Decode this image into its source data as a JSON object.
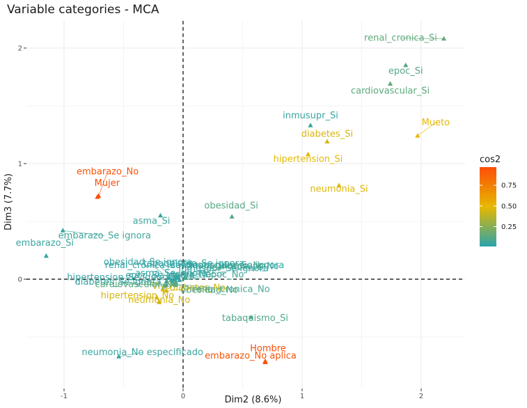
{
  "chart_data": {
    "type": "scatter",
    "title": "Variable categories - MCA",
    "xlabel": "Dim2 (8.6%)",
    "ylabel": "Dim3 (7.7%)",
    "xlim": [
      -1.0,
      2.0
    ],
    "ylim": [
      -0.8,
      2.2
    ],
    "x_ticks": [
      -1,
      0,
      1,
      2
    ],
    "y_ticks": [
      0,
      1,
      2
    ],
    "reference_lines": {
      "x": 0,
      "y": 0,
      "style": "dashed"
    },
    "grid": true,
    "marker": "triangle",
    "legend": {
      "title": "cos2",
      "position": "right",
      "ticks": [
        0.25,
        0.5,
        0.75
      ],
      "colors": [
        "#2AA4AC",
        "#E7B800",
        "#FC4E07"
      ],
      "range": [
        0.01,
        0.97
      ]
    },
    "points": [
      {
        "label": "renal_cronica_Si",
        "x": 2.19,
        "y": 2.08,
        "cos2": 0.15
      },
      {
        "label": "epoc_Si",
        "x": 1.87,
        "y": 1.85,
        "cos2": 0.12
      },
      {
        "label": "cardiovascular_Si",
        "x": 1.74,
        "y": 1.69,
        "cos2": 0.14
      },
      {
        "label": "inmusupr_Si",
        "x": 1.07,
        "y": 1.33,
        "cos2": 0.05
      },
      {
        "label": "diabetes_Si",
        "x": 1.21,
        "y": 1.19,
        "cos2": 0.45
      },
      {
        "label": "Mueto",
        "x": 1.97,
        "y": 1.24,
        "cos2": 0.5
      },
      {
        "label": "hipertension_Si",
        "x": 1.05,
        "y": 1.08,
        "cos2": 0.48
      },
      {
        "label": "neumonia_Si",
        "x": 1.31,
        "y": 0.81,
        "cos2": 0.47
      },
      {
        "label": "embarazo_No",
        "x": -0.71,
        "y": 0.72,
        "cos2": 0.95
      },
      {
        "label": "Mujer",
        "x": -0.72,
        "y": 0.71,
        "cos2": 0.97
      },
      {
        "label": "obesidad_Si",
        "x": 0.41,
        "y": 0.54,
        "cos2": 0.12
      },
      {
        "label": "asma_Si",
        "x": -0.19,
        "y": 0.55,
        "cos2": 0.06
      },
      {
        "label": "embarazo_Se ignora",
        "x": -1.01,
        "y": 0.42,
        "cos2": 0.06
      },
      {
        "label": "inmusupr_Se ignora",
        "x": -0.04,
        "y": 0.02,
        "cos2": 0.03
      },
      {
        "label": "cardiovascular_Se ignora",
        "x": -0.06,
        "y": 0.03,
        "cos2": 0.03
      },
      {
        "label": "tabaquismo_No",
        "x": 0.02,
        "y": 0.01,
        "cos2": 0.12
      },
      {
        "label": "embarazo_Si",
        "x": -1.15,
        "y": 0.2,
        "cos2": 0.05
      },
      {
        "label": "obesidad_Se ignora",
        "x": -0.12,
        "y": 0.01,
        "cos2": 0.04
      },
      {
        "label": "renal_cronica_Se ignora",
        "x": -0.07,
        "y": 0.0,
        "cos2": 0.03
      },
      {
        "label": "tabaquismo_Se ignora",
        "x": -0.05,
        "y": 0.01,
        "cos2": 0.03
      },
      {
        "label": "inmusupr_No",
        "x": -0.03,
        "y": -0.01,
        "cos2": 0.05
      },
      {
        "label": "epoc_Se ignora",
        "x": -0.14,
        "y": -0.02,
        "cos2": 0.04
      },
      {
        "label": "asma_Se ignora",
        "x": -0.1,
        "y": -0.01,
        "cos2": 0.03
      },
      {
        "label": "asma_No",
        "x": -0.06,
        "y": -0.03,
        "cos2": 0.05
      },
      {
        "label": "epoc_No",
        "x": -0.09,
        "y": -0.02,
        "cos2": 0.06
      },
      {
        "label": "diabetes_Se ignora",
        "x": -0.16,
        "y": -0.06,
        "cos2": 0.04
      },
      {
        "label": "Vivo",
        "x": -0.17,
        "y": -0.09,
        "cos2": 0.48
      },
      {
        "label": "renal_cronica_No",
        "x": -0.08,
        "y": -0.04,
        "cos2": 0.08
      },
      {
        "label": "hipertension_Se ignora",
        "x": -0.14,
        "y": -0.05,
        "cos2": 0.04
      },
      {
        "label": "neumonia_No",
        "x": -0.2,
        "y": -0.2,
        "cos2": 0.45
      },
      {
        "label": "diabetes_No",
        "x": -0.14,
        "y": -0.1,
        "cos2": 0.44
      },
      {
        "label": "obesidad_No",
        "x": -0.06,
        "y": -0.05,
        "cos2": 0.12
      },
      {
        "label": "cardiovascular_No",
        "x": -0.07,
        "y": -0.04,
        "cos2": 0.14
      },
      {
        "label": "tabaquismo_Si",
        "x": 0.57,
        "y": -0.33,
        "cos2": 0.1
      },
      {
        "label": "hipertension_No",
        "x": -0.22,
        "y": -0.16,
        "cos2": 0.45
      },
      {
        "label": "neumonia_No especificado",
        "x": -0.54,
        "y": -0.67,
        "cos2": 0.05
      },
      {
        "label": "Hombre",
        "x": 0.69,
        "y": -0.72,
        "cos2": 0.97
      },
      {
        "label": "embarazo_No aplica",
        "x": 0.69,
        "y": -0.71,
        "cos2": 0.95
      }
    ]
  }
}
